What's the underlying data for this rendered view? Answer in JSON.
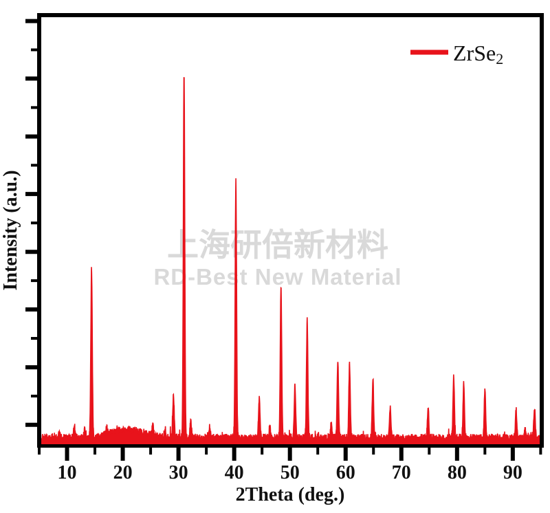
{
  "legend": {
    "label": "ZrSe",
    "label_sub": "2"
  },
  "watermark": {
    "line1": "上海研倍新材料",
    "line2": "RD-Best New Material",
    "color": "#d9d9d9"
  },
  "colors": {
    "curve": "#e8131b",
    "axis": "#000000",
    "background": "#ffffff"
  },
  "chart_data": {
    "type": "line",
    "title": "",
    "xlabel": "2Theta (deg.)",
    "ylabel": "Intensity (a.u.)",
    "legend_position": "top-right",
    "grid": false,
    "series_name": "ZrSe2",
    "xlim": [
      5.0,
      95.2
    ],
    "ylim": [
      0,
      116
    ],
    "x_major_ticks": [
      10,
      20,
      30,
      40,
      50,
      60,
      70,
      80,
      90
    ],
    "x_minor_step": 5,
    "y_major_tick_values": [
      5.6,
      21.1,
      36.7,
      52.2,
      67.8,
      83.3,
      98.9,
      114.4
    ],
    "y_minor_between": 1,
    "y_tick_labels_shown": false,
    "baseline": {
      "level": 1.5,
      "noise_amplitude": 1.7,
      "spike_chance": 0.015,
      "spike_extra": 1.4,
      "broad_bump": {
        "center": 20.8,
        "sigma": 3.0,
        "height": 2.2
      }
    },
    "peak_sigma_deg": 0.13,
    "peaks": [
      {
        "two_theta": 8.6,
        "intensity": 2.0
      },
      {
        "two_theta": 11.3,
        "intensity": 2.6
      },
      {
        "two_theta": 13.2,
        "intensity": 2.0
      },
      {
        "two_theta": 14.4,
        "intensity": 45.5
      },
      {
        "two_theta": 17.1,
        "intensity": 2.0
      },
      {
        "two_theta": 25.4,
        "intensity": 2.4
      },
      {
        "two_theta": 27.6,
        "intensity": 2.2
      },
      {
        "two_theta": 29.1,
        "intensity": 11.3
      },
      {
        "two_theta": 31.0,
        "intensity": 98.5
      },
      {
        "two_theta": 32.2,
        "intensity": 5.0
      },
      {
        "two_theta": 35.6,
        "intensity": 3.0
      },
      {
        "two_theta": 40.3,
        "intensity": 69.0
      },
      {
        "two_theta": 44.5,
        "intensity": 10.5
      },
      {
        "two_theta": 46.4,
        "intensity": 3.0
      },
      {
        "two_theta": 48.4,
        "intensity": 41.0
      },
      {
        "two_theta": 50.9,
        "intensity": 13.8
      },
      {
        "two_theta": 53.1,
        "intensity": 31.5
      },
      {
        "two_theta": 57.4,
        "intensity": 4.0
      },
      {
        "two_theta": 58.6,
        "intensity": 21.0
      },
      {
        "two_theta": 60.7,
        "intensity": 19.8
      },
      {
        "two_theta": 64.9,
        "intensity": 16.0
      },
      {
        "two_theta": 68.0,
        "intensity": 8.3
      },
      {
        "two_theta": 74.8,
        "intensity": 8.1
      },
      {
        "two_theta": 79.4,
        "intensity": 16.5
      },
      {
        "two_theta": 81.2,
        "intensity": 14.5
      },
      {
        "two_theta": 85.0,
        "intensity": 13.5
      },
      {
        "two_theta": 90.6,
        "intensity": 7.4
      },
      {
        "two_theta": 92.2,
        "intensity": 2.5
      },
      {
        "two_theta": 93.9,
        "intensity": 8.1
      }
    ]
  }
}
